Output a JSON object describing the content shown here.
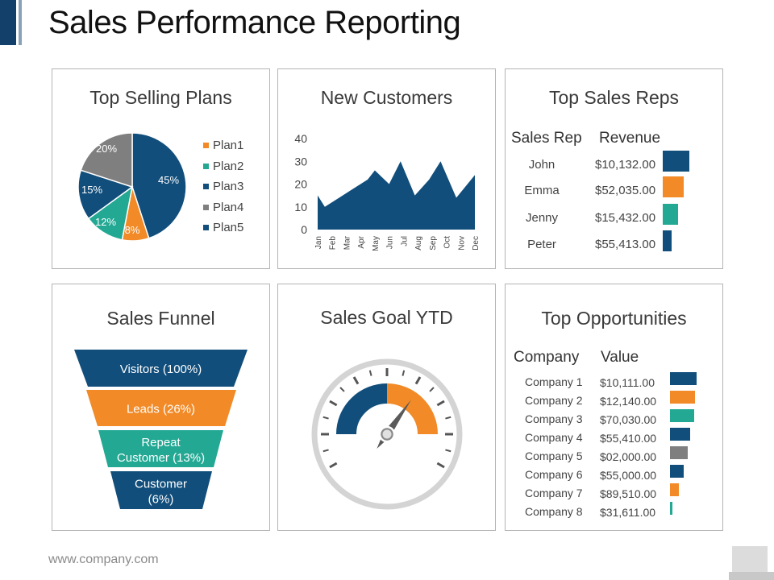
{
  "page": {
    "title": "Sales Performance Reporting",
    "footer_url": "www.company.com"
  },
  "colors": {
    "navy": "#114e7b",
    "orange": "#f18a27",
    "teal": "#22a893",
    "gray": "#7f7f7f",
    "panel_border": "#b4b4b4"
  },
  "top_selling_plans": {
    "title": "Top Selling Plans",
    "legend": [
      "Plan1",
      "Plan2",
      "Plan3",
      "Plan4",
      "Plan5"
    ],
    "chart_data": {
      "type": "pie",
      "slices": [
        {
          "label": "45%",
          "value": 45,
          "color": "#114e7b"
        },
        {
          "label": "8%",
          "value": 8,
          "color": "#f18a27"
        },
        {
          "label": "12%",
          "value": 12,
          "color": "#22a893"
        },
        {
          "label": "15%",
          "value": 15,
          "color": "#114e7b"
        },
        {
          "label": "20%",
          "value": 20,
          "color": "#7f7f7f"
        }
      ]
    }
  },
  "new_customers": {
    "title": "New Customers",
    "chart_data": {
      "type": "area",
      "categories": [
        "Jan",
        "Feb",
        "Mar",
        "Apr",
        "May",
        "Jun",
        "Jul",
        "Aug",
        "Sep",
        "Oct",
        "Nov",
        "Dec"
      ],
      "values": [
        15,
        10,
        14,
        18,
        22,
        26,
        20,
        30,
        15,
        22,
        30,
        14,
        24
      ],
      "x": [
        0,
        0.5,
        1.5,
        2.5,
        3.5,
        4.0,
        5.0,
        5.8,
        6.8,
        7.8,
        8.6,
        9.7,
        11
      ],
      "yticks": [
        "40",
        "30",
        "20",
        "10",
        "0"
      ],
      "ylim": [
        0,
        40
      ],
      "color": "#114e7b"
    }
  },
  "top_sales_reps": {
    "title": "Top Sales Reps",
    "col_rep": "Sales Rep",
    "col_revenue": "Revenue",
    "rows": [
      {
        "name": "John",
        "revenue": "$10,132.00",
        "bar": 1.0,
        "color": "#114e7b"
      },
      {
        "name": "Emma",
        "revenue": "$52,035.00",
        "bar": 0.78,
        "color": "#f18a27"
      },
      {
        "name": "Jenny",
        "revenue": "$15,432.00",
        "bar": 0.57,
        "color": "#22a893"
      },
      {
        "name": "Peter",
        "revenue": "$55,413.00",
        "bar": 0.33,
        "color": "#114e7b"
      }
    ]
  },
  "sales_funnel": {
    "title": "Sales Funnel",
    "stages": [
      {
        "line1": "Visitors (100%)",
        "line2": "",
        "color": "#114e7b"
      },
      {
        "line1": "Leads (26%)",
        "line2": "",
        "color": "#f18a27"
      },
      {
        "line1": "Repeat",
        "line2": "Customer (13%)",
        "color": "#22a893"
      },
      {
        "line1": "Customer",
        "line2": "(6%)",
        "color": "#114e7b"
      }
    ]
  },
  "sales_goal": {
    "title": "Sales Goal YTD",
    "progress_fraction": 0.5
  },
  "top_opportunities": {
    "title": "Top Opportunities",
    "col_company": "Company",
    "col_value": "Value",
    "rows": [
      {
        "company": "Company 1",
        "value": "$10,111.00",
        "bar": 1.0,
        "color": "#114e7b"
      },
      {
        "company": "Company 2",
        "value": "$12,140.00",
        "bar": 0.94,
        "color": "#f18a27"
      },
      {
        "company": "Company 3",
        "value": "$70,030.00",
        "bar": 0.91,
        "color": "#22a893"
      },
      {
        "company": "Company 4",
        "value": "$55,410.00",
        "bar": 0.76,
        "color": "#114e7b"
      },
      {
        "company": "Company 5",
        "value": "$02,000.00",
        "bar": 0.67,
        "color": "#7f7f7f"
      },
      {
        "company": "Company 6",
        "value": "$55,000.00",
        "bar": 0.52,
        "color": "#114e7b"
      },
      {
        "company": "Company 7",
        "value": "$89,510.00",
        "bar": 0.33,
        "color": "#f18a27"
      },
      {
        "company": "Company 8",
        "value": "$31,611.00",
        "bar": 0.09,
        "color": "#22a893"
      }
    ]
  }
}
